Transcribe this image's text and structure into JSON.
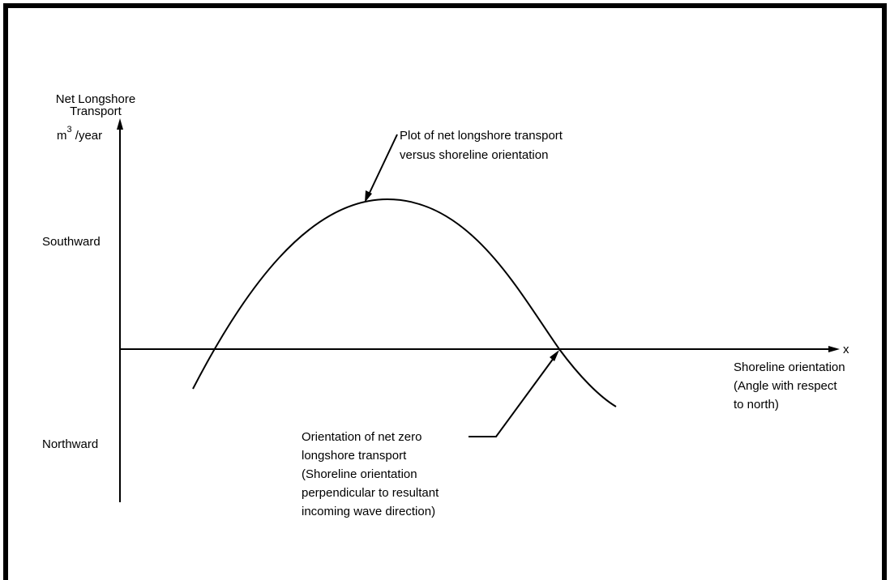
{
  "y_axis": {
    "label": [
      "Net Longshore",
      "Transport"
    ],
    "unit": {
      "base": "m",
      "exponent": "3",
      "rest": " /year"
    },
    "positive": "Southward",
    "negative": "Northward"
  },
  "x_axis": {
    "symbol": "x",
    "label": [
      "Shoreline orientation",
      "(Angle with respect",
      "to north)"
    ]
  },
  "annotations": {
    "curve": [
      "Plot of net longshore transport",
      "versus shoreline orientation"
    ],
    "zero": [
      "Orientation of net zero",
      "longshore transport",
      "(Shoreline orientation",
      "perpendicular to resultant",
      "incoming wave direction)"
    ]
  }
}
